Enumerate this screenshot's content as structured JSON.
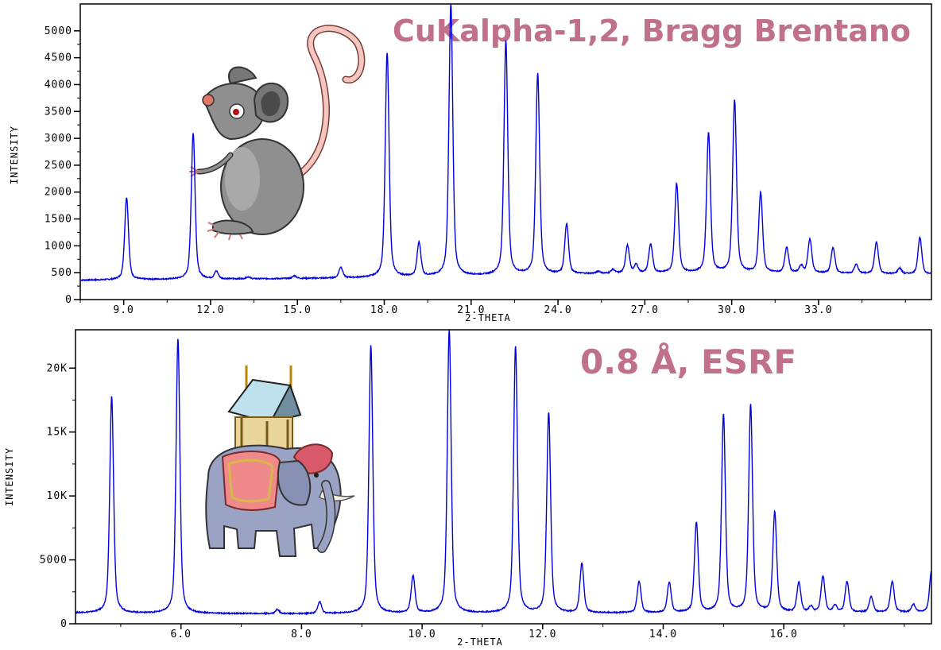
{
  "chart_data": [
    {
      "type": "line",
      "annotation": "CuKalpha-1,2, Bragg Brentano",
      "xlabel": "2-THETA",
      "ylabel": "INTENSITY",
      "xlim": [
        7.5,
        36.9
      ],
      "ylim": [
        0,
        5500
      ],
      "xticks": [
        9.0,
        12.0,
        15.0,
        18.0,
        21.0,
        24.0,
        27.0,
        30.0,
        33.0
      ],
      "xtick_labels": [
        "9.0",
        "12.0",
        "15.0",
        "18.0",
        "21.0",
        "24.0",
        "27.0",
        "30.0",
        "33.0"
      ],
      "yticks": [
        0,
        500,
        1000,
        1500,
        2000,
        2500,
        3000,
        3500,
        4000,
        4500,
        5000
      ],
      "ytick_labels": [
        "0",
        "500",
        "1000",
        "1500",
        "2000",
        "2500",
        "3000",
        "3500",
        "4000",
        "4500",
        "5000"
      ],
      "series": [
        {
          "color": "#0000e0",
          "baseline": [
            [
              7.5,
              360
            ],
            [
              9.5,
              370
            ],
            [
              12.0,
              380
            ],
            [
              15.0,
              390
            ],
            [
              18.0,
              410
            ],
            [
              21.0,
              440
            ],
            [
              24.0,
              470
            ],
            [
              27.0,
              490
            ],
            [
              30.0,
              500
            ],
            [
              33.0,
              490
            ],
            [
              36.9,
              470
            ]
          ],
          "peaks": [
            {
              "x": 9.1,
              "y": 1900
            },
            {
              "x": 11.4,
              "y": 3100
            },
            {
              "x": 12.2,
              "y": 520
            },
            {
              "x": 13.3,
              "y": 420
            },
            {
              "x": 14.9,
              "y": 440
            },
            {
              "x": 16.5,
              "y": 600
            },
            {
              "x": 18.1,
              "y": 4600
            },
            {
              "x": 19.2,
              "y": 1050
            },
            {
              "x": 20.3,
              "y": 5500
            },
            {
              "x": 22.2,
              "y": 4800
            },
            {
              "x": 23.3,
              "y": 4200
            },
            {
              "x": 24.3,
              "y": 1400
            },
            {
              "x": 25.4,
              "y": 520
            },
            {
              "x": 25.9,
              "y": 550
            },
            {
              "x": 26.4,
              "y": 1000
            },
            {
              "x": 26.7,
              "y": 640
            },
            {
              "x": 27.2,
              "y": 1020
            },
            {
              "x": 28.1,
              "y": 2150
            },
            {
              "x": 29.2,
              "y": 3100
            },
            {
              "x": 30.1,
              "y": 3700
            },
            {
              "x": 31.0,
              "y": 1980
            },
            {
              "x": 31.9,
              "y": 960
            },
            {
              "x": 32.4,
              "y": 620
            },
            {
              "x": 32.7,
              "y": 1120
            },
            {
              "x": 33.5,
              "y": 960
            },
            {
              "x": 34.3,
              "y": 650
            },
            {
              "x": 35.0,
              "y": 1060
            },
            {
              "x": 35.8,
              "y": 580
            },
            {
              "x": 36.5,
              "y": 1150
            }
          ]
        }
      ]
    },
    {
      "type": "line",
      "annotation": "0.8 Å, ESRF",
      "xlabel": "2-THETA",
      "ylabel": "INTENSITY",
      "xlim": [
        4.25,
        18.45
      ],
      "ylim": [
        0,
        23000
      ],
      "xticks": [
        6.0,
        8.0,
        10.0,
        12.0,
        14.0,
        16.0
      ],
      "xtick_labels": [
        "6.0",
        "8.0",
        "10.0",
        "12.0",
        "14.0",
        "16.0"
      ],
      "yticks": [
        0,
        5000,
        10000,
        15000,
        20000
      ],
      "ytick_labels": [
        "0",
        "5000",
        "10K",
        "15K",
        "20K"
      ],
      "series": [
        {
          "color": "#0000e0",
          "baseline": [
            [
              4.25,
              850
            ],
            [
              6.0,
              800
            ],
            [
              8.0,
              780
            ],
            [
              10.0,
              820
            ],
            [
              12.0,
              830
            ],
            [
              14.0,
              850
            ],
            [
              16.0,
              880
            ],
            [
              18.45,
              900
            ]
          ],
          "peaks": [
            {
              "x": 4.85,
              "y": 17800
            },
            {
              "x": 5.95,
              "y": 22300
            },
            {
              "x": 7.6,
              "y": 1100
            },
            {
              "x": 8.3,
              "y": 1700
            },
            {
              "x": 9.15,
              "y": 21800
            },
            {
              "x": 9.85,
              "y": 3700
            },
            {
              "x": 10.45,
              "y": 23000
            },
            {
              "x": 11.55,
              "y": 21700
            },
            {
              "x": 12.1,
              "y": 16500
            },
            {
              "x": 12.65,
              "y": 4700
            },
            {
              "x": 13.6,
              "y": 3300
            },
            {
              "x": 14.1,
              "y": 3200
            },
            {
              "x": 14.55,
              "y": 7900
            },
            {
              "x": 15.0,
              "y": 16300
            },
            {
              "x": 15.45,
              "y": 17100
            },
            {
              "x": 15.85,
              "y": 8700
            },
            {
              "x": 16.25,
              "y": 3200
            },
            {
              "x": 16.45,
              "y": 1300
            },
            {
              "x": 16.65,
              "y": 3700
            },
            {
              "x": 16.85,
              "y": 1400
            },
            {
              "x": 17.05,
              "y": 3300
            },
            {
              "x": 17.45,
              "y": 2100
            },
            {
              "x": 17.8,
              "y": 3300
            },
            {
              "x": 18.15,
              "y": 1500
            },
            {
              "x": 18.45,
              "y": 4100
            }
          ]
        }
      ]
    }
  ],
  "illustrations": {
    "top": "mouse-illustration",
    "bottom": "elephant-illustration"
  },
  "colors": {
    "line": "#0000e0",
    "annotation": "#c0708a",
    "frame": "#000000"
  }
}
